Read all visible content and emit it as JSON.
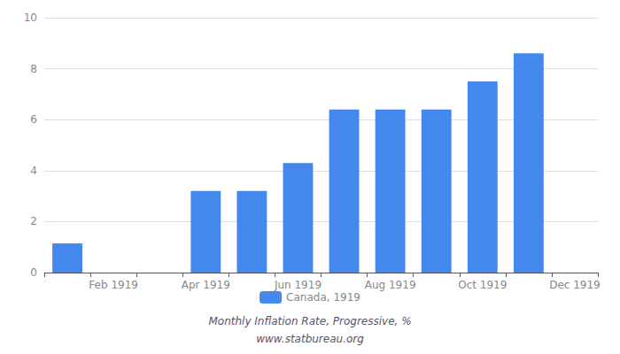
{
  "chart_data": {
    "type": "bar",
    "subtitle": "Monthly Inflation Rate, Progressive, %",
    "annotations": [
      "www.statbureau.org"
    ],
    "categories": [
      null,
      "Feb 1919",
      null,
      "Apr 1919",
      null,
      "Jun 1919",
      null,
      "Aug 1919",
      null,
      "Oct 1919",
      null,
      "Dec 1919"
    ],
    "series": [
      {
        "name": "Canada, 1919",
        "color": "#4488ee",
        "values": [
          1.15,
          null,
          null,
          3.2,
          3.2,
          4.3,
          6.4,
          6.4,
          6.4,
          7.5,
          8.6,
          null
        ]
      }
    ],
    "ylim": [
      0,
      10
    ],
    "yticks": [
      0,
      2,
      4,
      6,
      8,
      10
    ],
    "grid": true,
    "legend": "bottom"
  }
}
